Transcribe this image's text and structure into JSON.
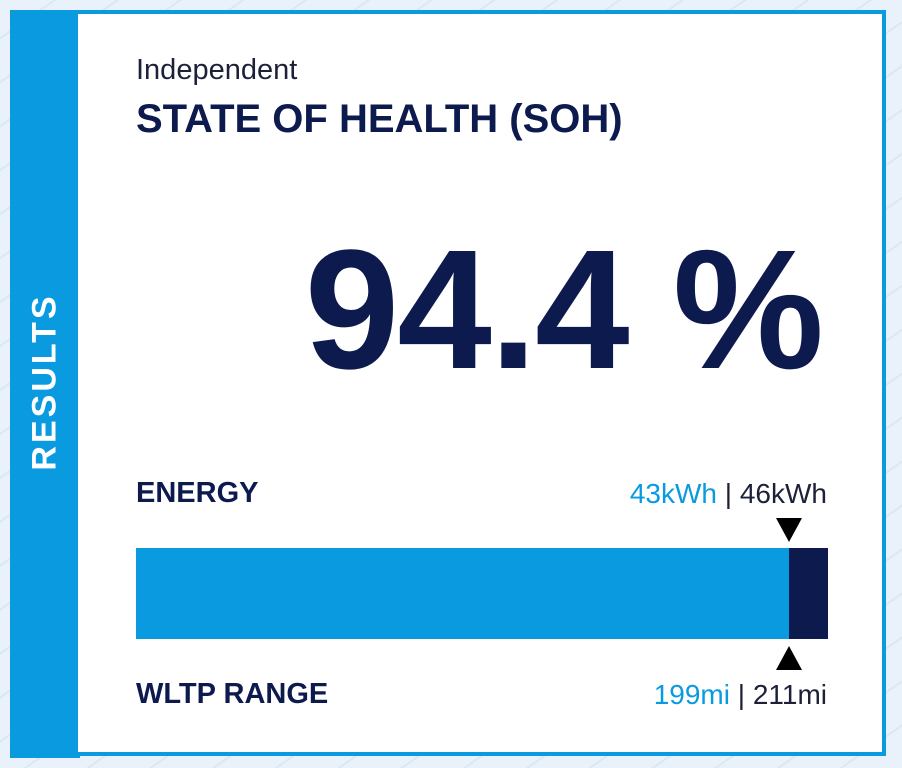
{
  "side_tab": {
    "label": "RESULTS"
  },
  "header": {
    "subtitle": "Independent",
    "title": "STATE OF HEALTH (SOH)"
  },
  "soh": {
    "value_text": "94.4 %",
    "percent": 94.4
  },
  "energy": {
    "label": "ENERGY",
    "current": "43kWh",
    "separator": " | ",
    "total": "46kWh"
  },
  "range": {
    "label": "WLTP RANGE",
    "current": "199mi",
    "separator": " | ",
    "total": "211mi"
  },
  "colors": {
    "accent": "#0a9ae0",
    "navy": "#0d1a4e"
  }
}
